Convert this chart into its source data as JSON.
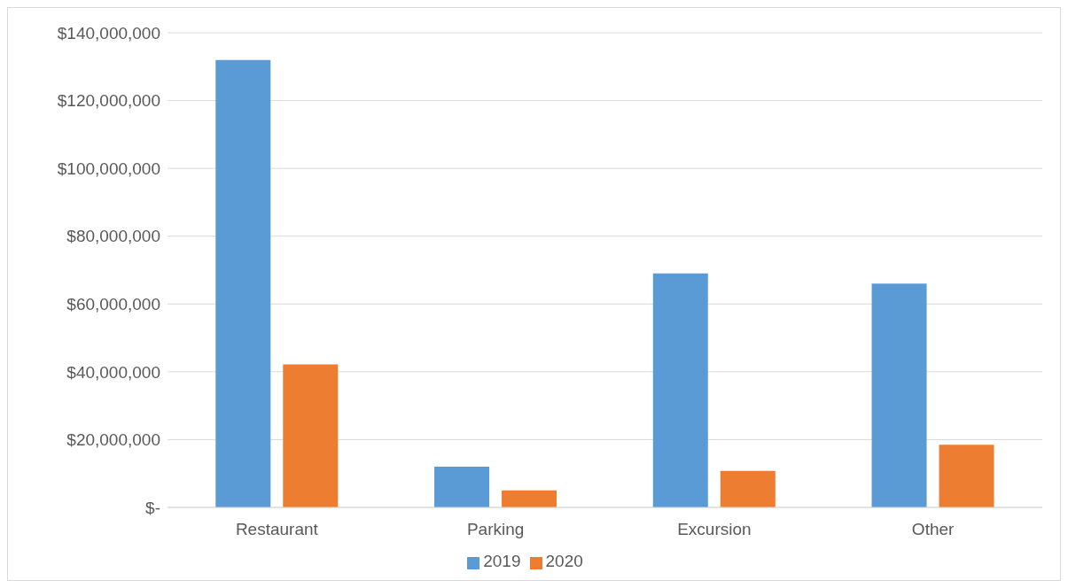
{
  "chart_data": {
    "type": "bar",
    "categories": [
      "Restaurant",
      "Parking",
      "Excursion",
      "Other"
    ],
    "series": [
      {
        "name": "2019",
        "color": "#5b9bd5",
        "values": [
          132000000,
          12000000,
          69000000,
          66000000
        ]
      },
      {
        "name": "2020",
        "color": "#ed7d31",
        "values": [
          42200000,
          5000000,
          10800000,
          18500000
        ]
      }
    ],
    "ylim": [
      0,
      140000000
    ],
    "yticks": [
      {
        "value": 0,
        "label": "$-"
      },
      {
        "value": 20000000,
        "label": "$20,000,000"
      },
      {
        "value": 40000000,
        "label": "$40,000,000"
      },
      {
        "value": 60000000,
        "label": "$60,000,000"
      },
      {
        "value": 80000000,
        "label": "$80,000,000"
      },
      {
        "value": 100000000,
        "label": "$100,000,000"
      },
      {
        "value": 120000000,
        "label": "$120,000,000"
      },
      {
        "value": 140000000,
        "label": "$140,000,000"
      }
    ],
    "grid": "y",
    "legend": "bottom"
  }
}
